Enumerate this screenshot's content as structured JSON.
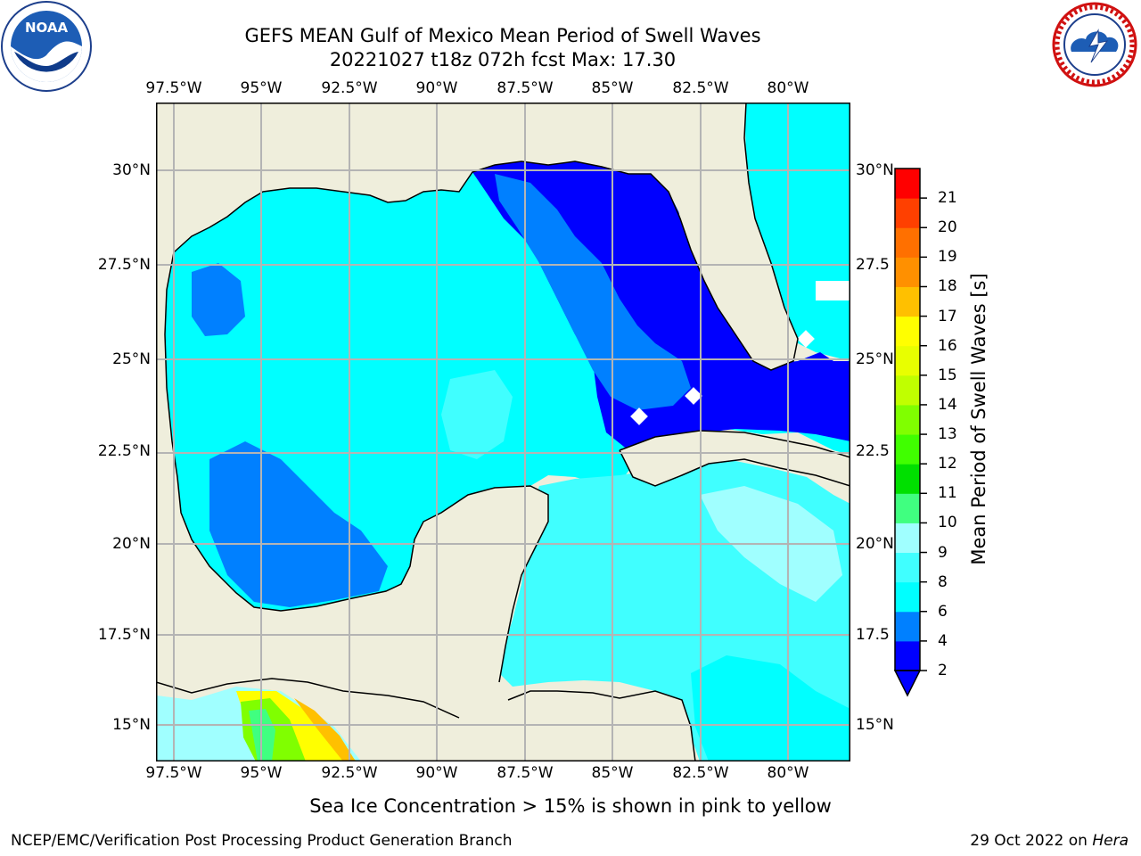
{
  "header": {
    "title_line1": "GEFS MEAN Gulf of Mexico Mean Period of Swell Waves",
    "title_line2": "20221027 t18z 072h fcst   Max: 17.30"
  },
  "logos": {
    "left": {
      "name": "noaa-logo",
      "text": "NOAA"
    },
    "right": {
      "name": "nws-logo"
    }
  },
  "map": {
    "x_ticks": [
      "97.5°W",
      "95°W",
      "92.5°W",
      "90°W",
      "87.5°W",
      "85°W",
      "82.5°W",
      "80°W"
    ],
    "y_ticks_left": [
      "30°N",
      "27.5°N",
      "25°N",
      "22.5°N",
      "20°N",
      "17.5°N",
      "15°N"
    ],
    "y_ticks_right": [
      "30°N",
      "27.5",
      "25°N",
      "22.5",
      "20°N",
      "17.5",
      "15°N"
    ],
    "colors": {
      "land": "#efeedc",
      "ocean_base": "#00ffff"
    }
  },
  "colorbar": {
    "title": "Mean Period of Swell Waves [s]",
    "levels": [
      "2",
      "4",
      "6",
      "8",
      "9",
      "10",
      "11",
      "12",
      "13",
      "14",
      "15",
      "16",
      "17",
      "18",
      "19",
      "20",
      "21"
    ],
    "colors": [
      "#0000ff",
      "#0080ff",
      "#00ffff",
      "#40ffff",
      "#a0ffff",
      "#40ff80",
      "#00e000",
      "#40ff00",
      "#80ff00",
      "#c0ff00",
      "#e8ff00",
      "#ffff00",
      "#ffc000",
      "#ff9000",
      "#ff7000",
      "#ff4000",
      "#ff0000"
    ]
  },
  "note": "Sea Ice Concentration > 15% is shown in pink to yellow",
  "footer": {
    "left": "NCEP/EMC/Verification Post Processing Product Generation Branch",
    "right_prefix": "29 Oct 2022 on ",
    "right_host": "Hera"
  }
}
